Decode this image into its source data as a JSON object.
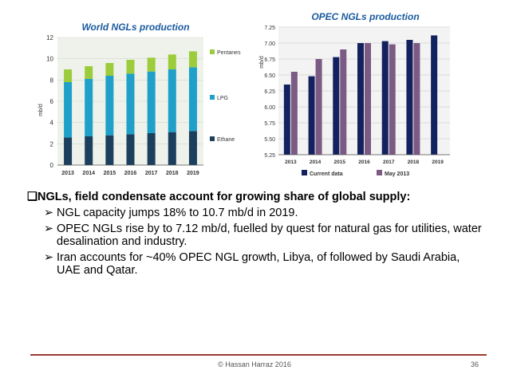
{
  "slide": {
    "main_bullet": "NGLs, field condensate account for growing share of global supply:",
    "main_marker": "❑",
    "sub_marker": "➢",
    "sub_bullets": [
      "NGL capacity jumps 18% to 10.7 mb/d in 2019.",
      "OPEC NGLs rise by to 7.12 mb/d, fuelled by quest for natural gas for utilities, water desalination and industry.",
      "Iran accounts for ~40% OPEC NGL growth, Libya, of followed by Saudi Arabia, UAE and Qatar."
    ],
    "footer": "© Hassan Harraz 2016",
    "page_number": "36"
  },
  "chart_data": [
    {
      "type": "bar",
      "stacked": true,
      "title": "World NGLs production",
      "ylabel": "mb/d",
      "xlabel": "",
      "categories": [
        "2013",
        "2014",
        "2015",
        "2016",
        "2017",
        "2018",
        "2019"
      ],
      "ylim": [
        0,
        12
      ],
      "yticks": [
        0,
        2,
        4,
        6,
        8,
        10,
        12
      ],
      "grid": true,
      "legend": "right",
      "series": [
        {
          "name": "Ethane",
          "color": "#1b3f5c",
          "values": [
            2.6,
            2.7,
            2.8,
            2.9,
            3.0,
            3.1,
            3.2
          ]
        },
        {
          "name": "LPG",
          "color": "#1ea0c8",
          "values": [
            5.2,
            5.4,
            5.6,
            5.7,
            5.8,
            5.9,
            6.0
          ]
        },
        {
          "name": "Pentanes",
          "color": "#9ccc3c",
          "values": [
            1.2,
            1.2,
            1.2,
            1.3,
            1.3,
            1.4,
            1.5
          ]
        }
      ]
    },
    {
      "type": "bar",
      "stacked": false,
      "title": "OPEC NGLs production",
      "ylabel": "mb/d",
      "xlabel": "",
      "categories": [
        "2013",
        "2014",
        "2015",
        "2016",
        "2017",
        "2018",
        "2019"
      ],
      "ylim": [
        5.25,
        7.25
      ],
      "yticks": [
        5.25,
        5.5,
        5.75,
        6.0,
        6.25,
        6.5,
        6.75,
        7.0,
        7.25
      ],
      "grid": true,
      "legend": "bottom",
      "series": [
        {
          "name": "Current data",
          "color": "#13215e",
          "values": [
            6.35,
            6.48,
            6.78,
            7.0,
            7.03,
            7.05,
            7.12
          ]
        },
        {
          "name": "May 2013",
          "color": "#7b5a84",
          "values": [
            6.55,
            6.75,
            6.9,
            7.0,
            6.98,
            7.0,
            null
          ]
        }
      ]
    }
  ]
}
